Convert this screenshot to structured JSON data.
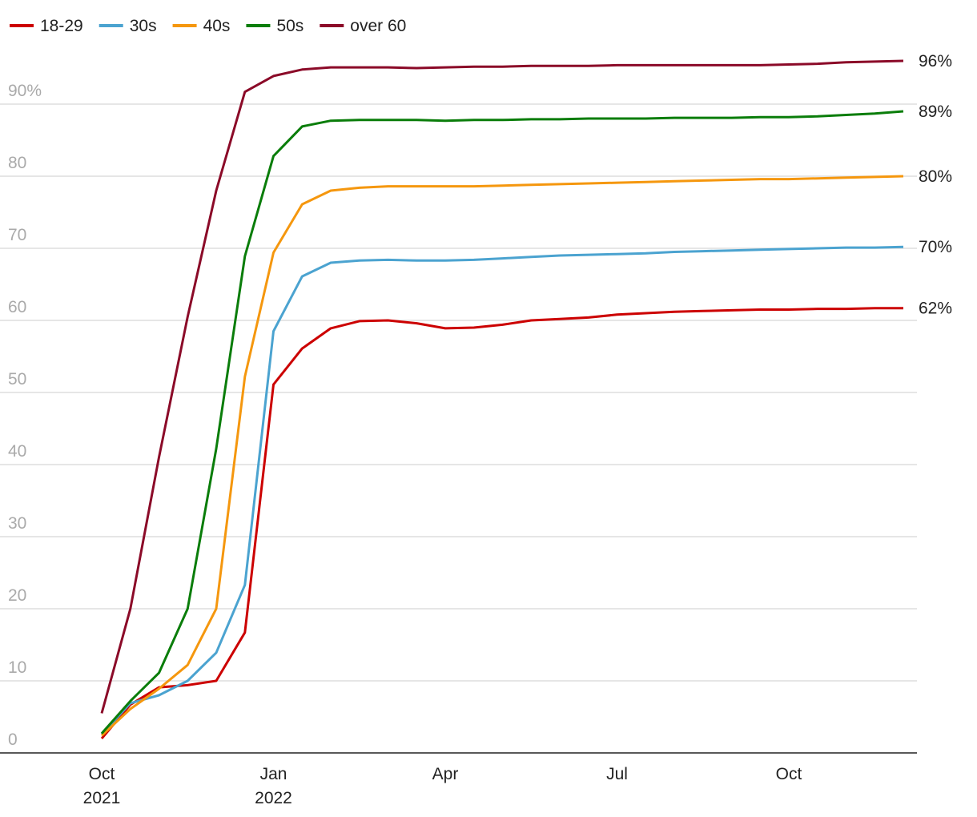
{
  "chart_data": {
    "type": "line",
    "categories": [
      "Oct 2021",
      null,
      null,
      null,
      null,
      null,
      "Jan 2022",
      null,
      null,
      null,
      null,
      null,
      "Apr",
      null,
      null,
      null,
      null,
      null,
      "Jul",
      null,
      null,
      null,
      null,
      null,
      "Oct",
      null,
      null,
      null,
      null
    ],
    "ylim": [
      0,
      100
    ],
    "yticks": [
      0,
      10,
      20,
      30,
      40,
      50,
      60,
      70,
      80,
      {
        "value": 90,
        "label": "90%"
      }
    ],
    "grid": true,
    "legend": "top-left",
    "series": [
      {
        "name": "18-29",
        "color": "#cc0000",
        "end_label": "62%",
        "values": [
          2.0,
          6.7,
          9.1,
          9.4,
          10.0,
          16.7,
          51.1,
          56.1,
          58.9,
          59.9,
          60.0,
          59.6,
          58.9,
          59.0,
          59.4,
          60.0,
          60.2,
          60.4,
          60.8,
          61.0,
          61.2,
          61.3,
          61.4,
          61.5,
          61.5,
          61.6,
          61.6,
          61.7,
          61.7
        ]
      },
      {
        "name": "30s",
        "color": "#4ba3d0",
        "end_label": "70%",
        "values": [
          2.6,
          6.9,
          8.0,
          10.0,
          13.9,
          23.3,
          58.5,
          66.1,
          68.0,
          68.3,
          68.4,
          68.3,
          68.3,
          68.4,
          68.6,
          68.8,
          69.0,
          69.1,
          69.2,
          69.3,
          69.5,
          69.6,
          69.7,
          69.8,
          69.9,
          70.0,
          70.1,
          70.1,
          70.2
        ]
      },
      {
        "name": "40s",
        "color": "#f5970e",
        "end_label": "80%",
        "values": [
          2.4,
          6.1,
          8.9,
          12.2,
          20.0,
          52.2,
          69.4,
          76.1,
          78.0,
          78.4,
          78.6,
          78.6,
          78.6,
          78.6,
          78.7,
          78.8,
          78.9,
          79.0,
          79.1,
          79.2,
          79.3,
          79.4,
          79.5,
          79.6,
          79.6,
          79.7,
          79.8,
          79.9,
          80.0
        ]
      },
      {
        "name": "50s",
        "color": "#0a7d0a",
        "end_label": "89%",
        "values": [
          2.7,
          7.2,
          11.1,
          20.0,
          42.2,
          68.9,
          82.8,
          86.9,
          87.7,
          87.8,
          87.8,
          87.8,
          87.7,
          87.8,
          87.8,
          87.9,
          87.9,
          88.0,
          88.0,
          88.0,
          88.1,
          88.1,
          88.1,
          88.2,
          88.2,
          88.3,
          88.5,
          88.7,
          89.0
        ]
      },
      {
        "name": "over 60",
        "color": "#8b0a28",
        "end_label": "96%",
        "values": [
          5.5,
          20.0,
          41.0,
          60.5,
          78.0,
          91.7,
          93.9,
          94.8,
          95.1,
          95.1,
          95.1,
          95.0,
          95.1,
          95.2,
          95.2,
          95.3,
          95.3,
          95.3,
          95.4,
          95.4,
          95.4,
          95.4,
          95.4,
          95.4,
          95.5,
          95.6,
          95.8,
          95.9,
          96.0
        ]
      }
    ]
  }
}
